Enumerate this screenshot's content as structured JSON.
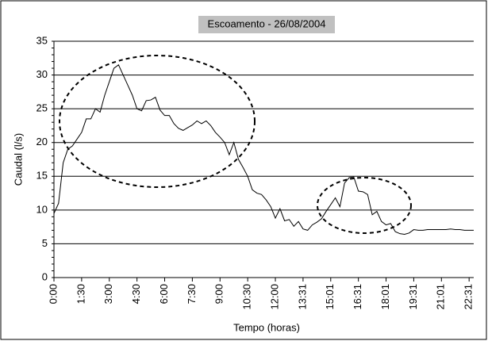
{
  "chart_data": {
    "type": "line",
    "title": "Escoamento - 26/08/2004",
    "x_label": "Tempo (horas)",
    "y_label": "Caudal (l/s)",
    "categories": [
      "0:00",
      null,
      null,
      null,
      null,
      null,
      "1:30",
      null,
      null,
      null,
      null,
      null,
      "3:00",
      null,
      null,
      null,
      null,
      null,
      "4:30",
      null,
      null,
      null,
      null,
      null,
      "6:00",
      null,
      null,
      null,
      null,
      null,
      "7:30",
      null,
      null,
      null,
      null,
      null,
      "9:00",
      null,
      null,
      null,
      null,
      null,
      "10:30",
      null,
      null,
      null,
      null,
      null,
      "12:00",
      null,
      null,
      null,
      null,
      null,
      "13:31",
      null,
      null,
      null,
      null,
      null,
      "15:01",
      null,
      null,
      null,
      null,
      null,
      "16:31",
      null,
      null,
      null,
      null,
      null,
      "18:01",
      null,
      null,
      null,
      null,
      null,
      "19:31",
      null,
      null,
      null,
      null,
      null,
      "21:01",
      null,
      null,
      null,
      null,
      null,
      "22:31",
      null
    ],
    "values": [
      9.5,
      11,
      17,
      19,
      19.5,
      20.5,
      21.5,
      23.5,
      23.5,
      25,
      24.5,
      27,
      29,
      31,
      31.5,
      30,
      28.5,
      27,
      25,
      24.7,
      26.2,
      26.3,
      26.7,
      24.8,
      24,
      24,
      22.8,
      22.1,
      21.8,
      22.2,
      22.6,
      23.2,
      22.8,
      23.2,
      22.5,
      21.5,
      20.8,
      20,
      18.2,
      20,
      17.5,
      16.3,
      15,
      13,
      12.5,
      12.3,
      11.5,
      10.5,
      8.8,
      10.2,
      8.4,
      8.6,
      7.6,
      8.3,
      7.2,
      7,
      7.8,
      8.2,
      8.7,
      9.8,
      10.8,
      11.8,
      10.5,
      14,
      14.8,
      14.9,
      12.8,
      12.7,
      12.3,
      9.3,
      9.8,
      8.3,
      7.8,
      8,
      6.8,
      6.5,
      6.4,
      6.6,
      7.1,
      7,
      7,
      7.1,
      7.1,
      7.1,
      7.1,
      7.1,
      7.2,
      7.1,
      7.1,
      7,
      7,
      7
    ],
    "color": "#000000",
    "ylim": [
      0,
      35
    ],
    "yticks": [
      0,
      5,
      10,
      15,
      20,
      25,
      30,
      35
    ],
    "grid": true
  }
}
